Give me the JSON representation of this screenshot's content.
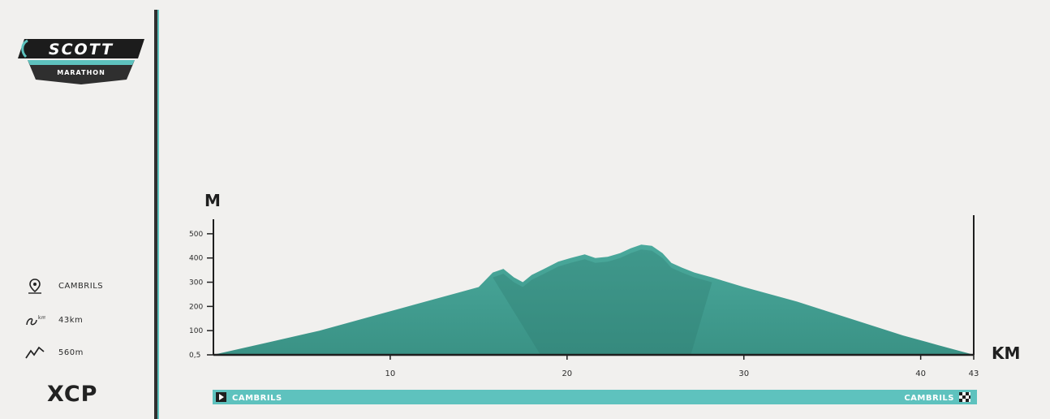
{
  "event": {
    "logo_brand": "SCOTT",
    "logo_sub": "MARATHON",
    "category": "XCP"
  },
  "info": {
    "location_icon": "map-pin-icon",
    "location": "CAMBRILS",
    "distance_icon": "route-distance-icon",
    "distance": "43km",
    "elevation_icon": "elevation-gain-icon",
    "elevation": "560m"
  },
  "route": {
    "start_icon": "play-flag-icon",
    "start": "CAMBRILS",
    "finish": "CAMBRILS",
    "finish_icon": "checkered-flag-icon"
  },
  "colors": {
    "profile_fill": "#3f9c8f",
    "profile_dark": "#2e7a70",
    "route_bar": "#5ec2be",
    "accent": "#5ec2be",
    "axis": "#1f1f1f"
  },
  "chart_data": {
    "type": "area",
    "title": "",
    "xlabel": "KM",
    "ylabel": "M",
    "xlim": [
      0,
      43
    ],
    "ylim": [
      0.5,
      560
    ],
    "x_ticks": [
      "10",
      "20",
      "30",
      "40",
      "43"
    ],
    "y_ticks": [
      "0,5",
      "100",
      "200",
      "300",
      "400",
      "500"
    ],
    "series": [
      {
        "x": [
          0,
          3,
          6,
          9,
          12,
          14,
          15,
          15.8,
          16.4,
          17,
          17.5,
          18,
          18.7,
          19.5,
          20.2,
          21,
          21.6,
          22.3,
          23,
          23.6,
          24.2,
          24.8,
          25.4,
          25.9,
          26.5,
          27.2,
          28.2,
          30,
          33,
          36,
          39,
          41,
          43
        ],
        "y": [
          0.5,
          50,
          100,
          160,
          220,
          260,
          280,
          340,
          355,
          320,
          300,
          330,
          355,
          385,
          400,
          415,
          400,
          405,
          420,
          440,
          455,
          450,
          420,
          380,
          360,
          340,
          320,
          280,
          220,
          150,
          80,
          40,
          0.5
        ]
      }
    ]
  }
}
